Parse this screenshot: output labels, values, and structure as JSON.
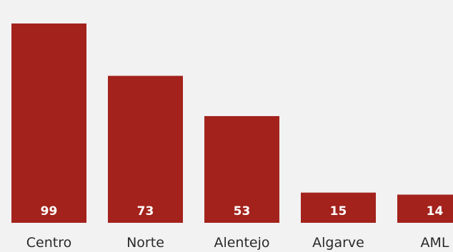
{
  "colors": {
    "bar": "#a3221c",
    "background": "#f2f2f2",
    "value_label": "#ffffff",
    "category_label": "#2a2a2a"
  },
  "chart_data": {
    "type": "bar",
    "categories": [
      "Centro",
      "Norte",
      "Alentejo",
      "Algarve",
      "AML"
    ],
    "values": [
      99,
      73,
      53,
      15,
      14
    ],
    "title": "",
    "xlabel": "",
    "ylabel": "",
    "ylim": [
      0,
      99
    ],
    "grid": false,
    "legend": "none",
    "data_labels": "inside-bottom"
  }
}
